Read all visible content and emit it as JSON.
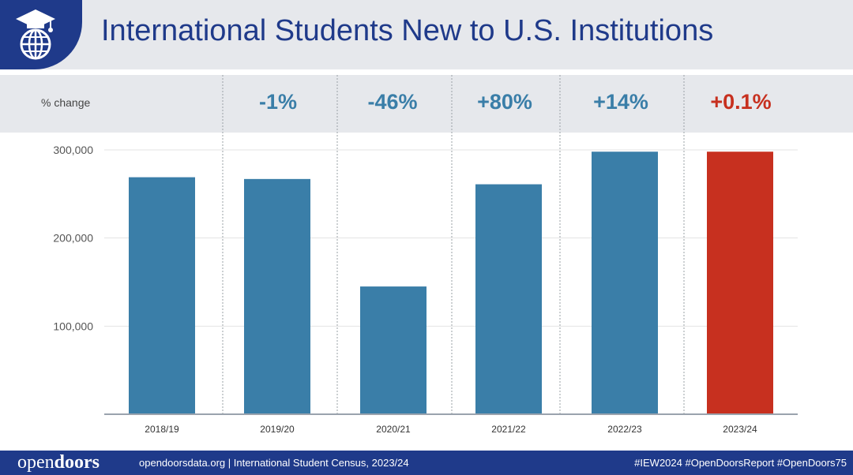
{
  "header": {
    "title": "International Students New to U.S. Institutions",
    "logo_icon": "globe-graduation-cap-icon"
  },
  "change_row": {
    "label": "% change",
    "values": [
      "-1%",
      "-46%",
      "+80%",
      "+14%",
      "+0.1%"
    ]
  },
  "chart_data": {
    "type": "bar",
    "title": "International Students New to U.S. Institutions",
    "categories": [
      "2018/19",
      "2019/20",
      "2020/21",
      "2021/22",
      "2022/23",
      "2023/24"
    ],
    "values": [
      269000,
      267000,
      145000,
      261000,
      298000,
      298000
    ],
    "y_ticks": [
      100000,
      200000,
      300000
    ],
    "y_tick_labels": [
      "100,000",
      "200,000",
      "300,000"
    ],
    "ylim": [
      0,
      300000
    ],
    "xlabel": "",
    "ylabel": "",
    "grid": true,
    "colors": {
      "bar": "#3a7ea8",
      "highlight": "#c7301f"
    },
    "highlight_index": 5
  },
  "footer": {
    "brand_light": "open",
    "brand_bold": "doors",
    "text": "opendoorsdata.org  |  International Student Census, 2023/24",
    "hashtags": "#IEW2024  #OpenDoorsReport  #OpenDoors75"
  }
}
